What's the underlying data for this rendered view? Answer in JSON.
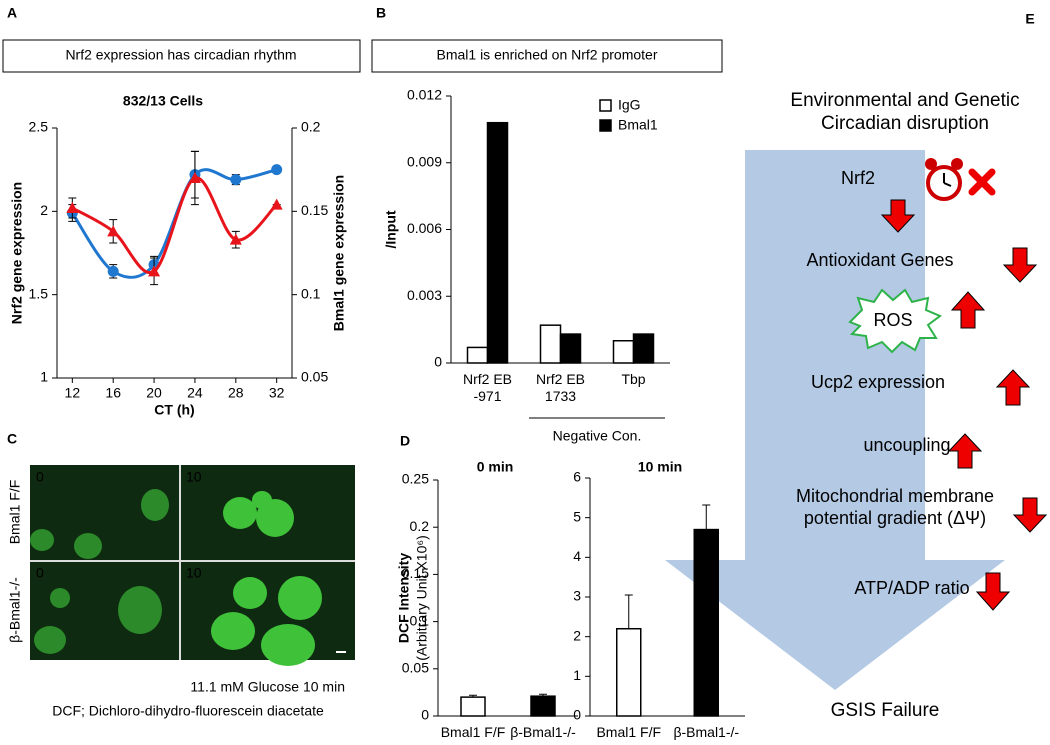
{
  "panel_letters": [
    "A",
    "B",
    "C",
    "D",
    "E"
  ],
  "chart_data": [
    {
      "type": "line",
      "panel_title": "Nrf2 expression has circadian rhythm",
      "title": "832/13 Cells",
      "x_label": "CT (h)",
      "y_label": "Nrf2 gene expression",
      "y2_label": "Bmal1 gene expression",
      "x": [
        12,
        16,
        20,
        24,
        28,
        32
      ],
      "xlim": [
        10.5,
        33.5
      ],
      "xticks": [
        12,
        16,
        20,
        24,
        28,
        32
      ],
      "ylim": [
        1,
        2.5
      ],
      "yticks": [
        1,
        1.5,
        2,
        2.5
      ],
      "y2lim": [
        0.05,
        0.2
      ],
      "y2ticks": [
        0.05,
        0.1,
        0.15,
        0.2
      ],
      "series": [
        {
          "color": "#1f77d0",
          "marker": "circle",
          "values": [
            1.99,
            1.64,
            1.68,
            2.22,
            2.19,
            2.25
          ],
          "errors": [
            0.05,
            0.04,
            0.05,
            0.14,
            0.03,
            0
          ]
        },
        {
          "color": "#e8141b",
          "marker": "triangle",
          "axis": "y2",
          "values": [
            0.152,
            0.138,
            0.114,
            0.17,
            0.133,
            0.154
          ],
          "errors": [
            0.006,
            0.007,
            0.008,
            0.016,
            0.005,
            0
          ]
        }
      ]
    },
    {
      "type": "bar",
      "panel_title": "Bmal1 is enriched on Nrf2 promoter",
      "y_label": "/Input",
      "categories": [
        "Nrf2 EB\n-971",
        "Nrf2 EB\n1733",
        "Tbp"
      ],
      "group_label": "Negative Con.",
      "series": [
        {
          "name": "IgG",
          "color": "#ffffff",
          "values": [
            0.0007,
            0.0017,
            0.001
          ]
        },
        {
          "name": "Bmal1",
          "color": "#000000",
          "values": [
            0.0108,
            0.0013,
            0.0013
          ]
        }
      ],
      "ylim": [
        0,
        0.012
      ],
      "yticks": [
        0,
        0.003,
        0.006,
        0.009,
        0.012
      ],
      "legend": "top-right"
    },
    {
      "type": "bar",
      "title": "0 min",
      "y_label": "DCF Intensity",
      "y_label_sub": "(Arbitrary Unit X10⁶)",
      "categories": [
        "Bmal1 F/F",
        "β-Bmal1-/-"
      ],
      "values": [
        0.02,
        0.021
      ],
      "errors": [
        0.002,
        0.002
      ],
      "colors": [
        "#ffffff",
        "#000000"
      ],
      "ylim": [
        0,
        0.25
      ],
      "yticks": [
        0,
        0.05,
        0.1,
        0.15,
        0.2,
        0.25
      ]
    },
    {
      "type": "bar",
      "title": "10 min",
      "categories": [
        "Bmal1 F/F",
        "β-Bmal1-/-"
      ],
      "values": [
        2.2,
        4.7
      ],
      "errors": [
        0.85,
        0.62
      ],
      "colors": [
        "#ffffff",
        "#000000"
      ],
      "ylim": [
        0,
        6
      ],
      "yticks": [
        0,
        1,
        2,
        3,
        4,
        5,
        6
      ]
    }
  ],
  "panel_c": {
    "frames": [
      "0",
      "10",
      "0",
      "10"
    ],
    "rows": [
      "Bmal1 F/F",
      "β-Bmal1-/-"
    ],
    "caption": "11.1 mM Glucose 10 min",
    "footnote": "DCF; Dichloro-dihydro-fluorescein diacetate"
  },
  "panel_e": {
    "title": "Environmental and Genetic\nCircadian disruption",
    "steps": [
      "Nrf2",
      "Antioxidant Genes",
      "ROS",
      "Ucp2 expression",
      "uncoupling",
      "Mitochondrial membrane\npotential gradient (ΔΨ)",
      "ATP/ADP ratio"
    ],
    "outcome": "GSIS Failure"
  }
}
